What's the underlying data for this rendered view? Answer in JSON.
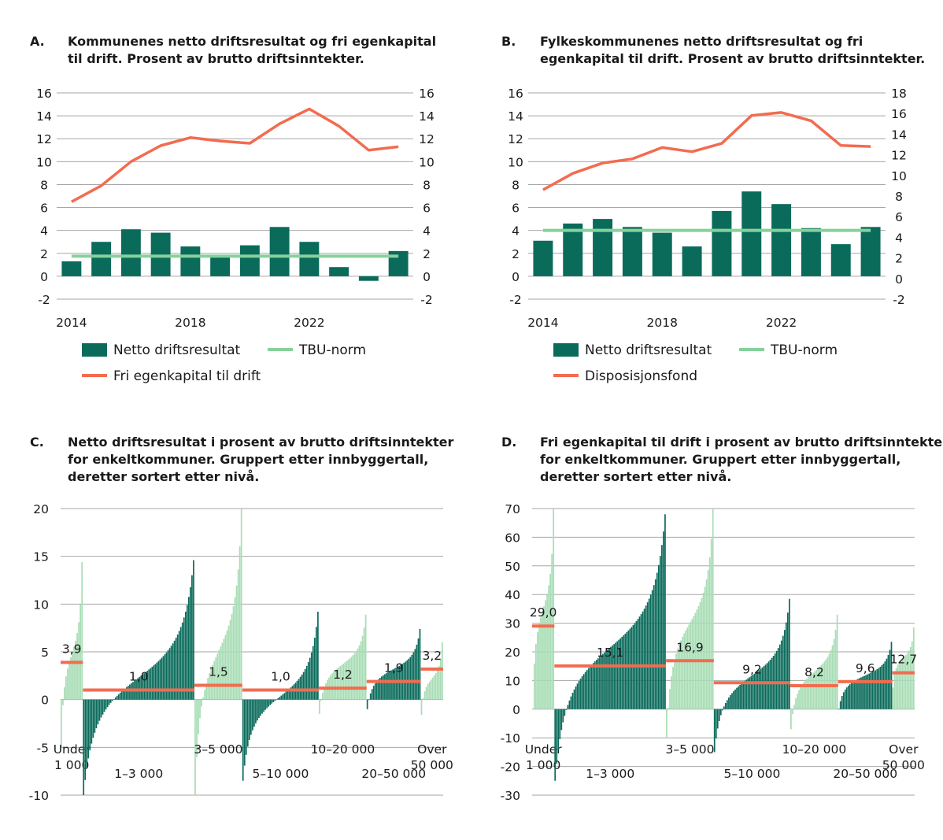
{
  "colors": {
    "bar_dark": "#0a6b5b",
    "bar_light": "#a8ddb5",
    "tbu": "#86d19b",
    "fund": "#f26c4f",
    "grid": "#a6a6a6"
  },
  "chart_data": [
    {
      "id": "A",
      "type": "bar+line",
      "letter": "A.",
      "title_lines": [
        "Kommunenes netto driftsresultat og fri egenkapital",
        "til drift. Prosent av brutto driftsinntekter."
      ],
      "left_ticks": [
        "16",
        "14",
        "12",
        "10",
        "8",
        "6",
        "4",
        "2",
        "0",
        "-2"
      ],
      "right_ticks": [
        "16",
        "14",
        "12",
        "10",
        "8",
        "6",
        "4",
        "2",
        "0",
        "-2"
      ],
      "ylim_left": [
        -2,
        16
      ],
      "ylim_right": [
        -2,
        16
      ],
      "x_years": [
        2014,
        2015,
        2016,
        2017,
        2018,
        2019,
        2020,
        2021,
        2022,
        2023,
        2024,
        2025
      ],
      "x_tick_labels": [
        "2014",
        "2018",
        "2022"
      ],
      "series": [
        {
          "name": "Netto driftsresultat",
          "kind": "bar",
          "axis": "left",
          "values": [
            1.3,
            3.0,
            4.1,
            3.8,
            2.6,
            1.8,
            2.7,
            4.3,
            3.0,
            0.8,
            -0.4,
            2.2
          ]
        },
        {
          "name": "TBU-norm",
          "kind": "hline",
          "axis": "left",
          "values": [
            1.75,
            1.75,
            1.75,
            1.75,
            1.75,
            1.75,
            1.75,
            1.75,
            1.75,
            1.75,
            1.75,
            1.75
          ]
        },
        {
          "name": "Fri egenkapital til drift",
          "kind": "line",
          "axis": "right",
          "values": [
            6.5,
            7.9,
            10.0,
            11.4,
            12.1,
            11.8,
            11.6,
            13.3,
            14.6,
            13.1,
            11.0,
            11.3
          ]
        }
      ],
      "legend": [
        {
          "label": "Netto driftsresultat",
          "kind": "box"
        },
        {
          "label": "TBU-norm",
          "kind": "line-tbu"
        },
        {
          "label": "Fri egenkapital til drift",
          "kind": "line-fund"
        }
      ]
    },
    {
      "id": "B",
      "type": "bar+line",
      "letter": "B.",
      "title_lines": [
        "Fylkeskommunenes netto driftsresultat og fri",
        "egenkapital til drift. Prosent av brutto driftsinntekter."
      ],
      "left_ticks": [
        "16",
        "14",
        "12",
        "10",
        "8",
        "6",
        "4",
        "2",
        "0",
        "-2"
      ],
      "right_ticks": [
        "18",
        "16",
        "14",
        "12",
        "10",
        "8",
        "6",
        "4",
        "2",
        "0",
        "-2"
      ],
      "ylim_left": [
        -2,
        16
      ],
      "ylim_right": [
        -2,
        18
      ],
      "x_years": [
        2014,
        2015,
        2016,
        2017,
        2018,
        2019,
        2020,
        2021,
        2022,
        2023,
        2024,
        2025
      ],
      "x_tick_labels": [
        "2014",
        "2018",
        "2022"
      ],
      "series": [
        {
          "name": "Netto driftsresultat",
          "kind": "bar",
          "axis": "left",
          "values": [
            3.1,
            4.6,
            5.0,
            4.3,
            3.8,
            2.6,
            5.7,
            7.4,
            6.3,
            4.2,
            2.8,
            4.3
          ]
        },
        {
          "name": "TBU-norm",
          "kind": "hline",
          "axis": "left",
          "values": [
            4.0,
            4.0,
            4.0,
            4.0,
            4.0,
            4.0,
            4.0,
            4.0,
            4.0,
            4.0,
            4.0,
            4.0
          ]
        },
        {
          "name": "Disposisjonsfond",
          "kind": "line",
          "axis": "right",
          "values": [
            8.6,
            10.2,
            11.2,
            11.6,
            12.7,
            12.3,
            13.1,
            15.8,
            16.1,
            15.3,
            12.9,
            12.8
          ]
        }
      ],
      "legend": [
        {
          "label": "Netto driftsresultat",
          "kind": "box"
        },
        {
          "label": "TBU-norm",
          "kind": "line-tbu"
        },
        {
          "label": "Disposisjonsfond",
          "kind": "line-fund"
        }
      ]
    },
    {
      "id": "C",
      "type": "bar",
      "letter": "C.",
      "title_lines": [
        "Netto driftsresultat i prosent av brutto driftsinntekter",
        "for enkeltkommuner. Gruppert etter innbyggertall,",
        "deretter sortert etter nivå."
      ],
      "ticks": [
        "20",
        "15",
        "10",
        "5",
        "0",
        "-5",
        "-10"
      ],
      "ylim": [
        -10,
        20
      ],
      "groups": [
        {
          "label_lines": [
            "Under",
            "1 000"
          ],
          "n": 14,
          "min": -5.0,
          "max": 14.4,
          "mean": 3.9,
          "mean_label": "3,9",
          "shade": "light",
          "label_pos": "top"
        },
        {
          "label_lines": [
            "1–3 000"
          ],
          "n": 70,
          "min": -10.0,
          "max": 14.6,
          "mean": 1.0,
          "mean_label": "1,0",
          "shade": "dark",
          "label_pos": "bottom"
        },
        {
          "label_lines": [
            "3–5 000"
          ],
          "n": 30,
          "min": -10.0,
          "max": 20.0,
          "mean": 1.5,
          "mean_label": "1,5",
          "shade": "light",
          "label_pos": "top"
        },
        {
          "label_lines": [
            "5–10 000"
          ],
          "n": 48,
          "min": -8.5,
          "max": 9.2,
          "mean": 1.0,
          "mean_label": "1,0",
          "shade": "dark",
          "label_pos": "bottom"
        },
        {
          "label_lines": [
            "10–20 000"
          ],
          "n": 30,
          "min": -1.5,
          "max": 8.9,
          "mean": 1.2,
          "mean_label": "1,2",
          "shade": "light",
          "label_pos": "top"
        },
        {
          "label_lines": [
            "20–50 000"
          ],
          "n": 34,
          "min": -1.0,
          "max": 7.4,
          "mean": 1.9,
          "mean_label": "1,9",
          "shade": "dark",
          "label_pos": "bottom"
        },
        {
          "label_lines": [
            "Over",
            "50 000"
          ],
          "n": 14,
          "min": -1.6,
          "max": 6.0,
          "mean": 3.2,
          "mean_label": "3,2",
          "shade": "light",
          "label_pos": "top"
        }
      ]
    },
    {
      "id": "D",
      "type": "bar",
      "letter": "D.",
      "title_lines": [
        "Fri egenkapital til drift i prosent av brutto driftsinntekter",
        "for enkeltkommuner. Gruppert etter innbyggertall,",
        "deretter sortert etter nivå."
      ],
      "ticks": [
        "70",
        "60",
        "50",
        "40",
        "30",
        "20",
        "10",
        "0",
        "-10",
        "-20",
        "-30"
      ],
      "ylim": [
        -30,
        70
      ],
      "groups": [
        {
          "label_lines": [
            "Under",
            "1 000"
          ],
          "n": 14,
          "min": 0.0,
          "max": 70.0,
          "mean": 29.0,
          "mean_label": "29,0",
          "shade": "light",
          "label_pos": "top"
        },
        {
          "label_lines": [
            "1–3 000"
          ],
          "n": 70,
          "min": -25.0,
          "max": 68.0,
          "mean": 15.1,
          "mean_label": "15,1",
          "shade": "dark",
          "label_pos": "bottom"
        },
        {
          "label_lines": [
            "3–5 000"
          ],
          "n": 30,
          "min": -10.0,
          "max": 70.0,
          "mean": 16.9,
          "mean_label": "16,9",
          "shade": "light",
          "label_pos": "top"
        },
        {
          "label_lines": [
            "5–10 000"
          ],
          "n": 48,
          "min": -15.0,
          "max": 38.5,
          "mean": 9.2,
          "mean_label": "9,2",
          "shade": "dark",
          "label_pos": "bottom"
        },
        {
          "label_lines": [
            "10–20 000"
          ],
          "n": 30,
          "min": -7.0,
          "max": 33.0,
          "mean": 8.2,
          "mean_label": "8,2",
          "shade": "light",
          "label_pos": "top"
        },
        {
          "label_lines": [
            "20–50 000"
          ],
          "n": 34,
          "min": 0.0,
          "max": 23.5,
          "mean": 9.6,
          "mean_label": "9,6",
          "shade": "dark",
          "label_pos": "bottom"
        },
        {
          "label_lines": [
            "Over",
            "50 000"
          ],
          "n": 14,
          "min": 7.5,
          "max": 28.5,
          "mean": 12.7,
          "mean_label": "12,7",
          "shade": "light",
          "label_pos": "top"
        }
      ]
    }
  ]
}
